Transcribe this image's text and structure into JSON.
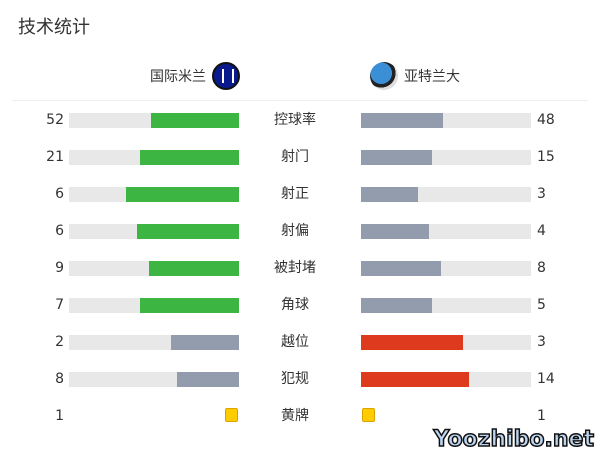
{
  "title": "技术统计",
  "home": {
    "name": "国际米兰",
    "logo": "inter-milan-crest"
  },
  "away": {
    "name": "亚特兰大",
    "logo": "atalanta-crest"
  },
  "colors": {
    "good": "#3db543",
    "bad": "#dd3a1e",
    "neutral": "#929cac",
    "track": "#e8e8e8",
    "card": "#ffcc00"
  },
  "stats": [
    {
      "label": "控球率",
      "home": "52",
      "away": "48",
      "type": "good"
    },
    {
      "label": "射门",
      "home": "21",
      "away": "15",
      "type": "good"
    },
    {
      "label": "射正",
      "home": "6",
      "away": "3",
      "type": "good"
    },
    {
      "label": "射偏",
      "home": "6",
      "away": "4",
      "type": "good"
    },
    {
      "label": "被封堵",
      "home": "9",
      "away": "8",
      "type": "good"
    },
    {
      "label": "角球",
      "home": "7",
      "away": "5",
      "type": "good"
    },
    {
      "label": "越位",
      "home": "2",
      "away": "3",
      "type": "bad"
    },
    {
      "label": "犯规",
      "home": "8",
      "away": "14",
      "type": "bad"
    },
    {
      "label": "黄牌",
      "home": "1",
      "away": "1",
      "type": "card"
    }
  ],
  "watermark": "Yoozhibo.net"
}
